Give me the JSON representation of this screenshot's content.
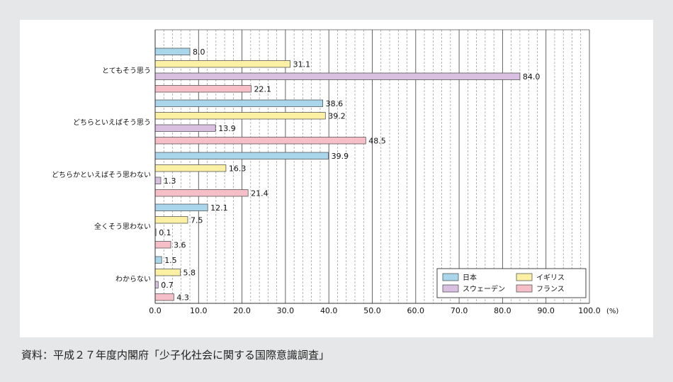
{
  "chart_data": {
    "type": "bar",
    "orientation": "horizontal",
    "categories": [
      "とてもそう思う",
      "どちらといえばそう思う",
      "どちらかといえばそう思わない",
      "全くそう思わない",
      "わからない"
    ],
    "series": [
      {
        "name": "日本",
        "values": [
          8.0,
          38.6,
          39.9,
          12.1,
          1.5
        ],
        "color": "#a9d6ea"
      },
      {
        "name": "イギリス",
        "values": [
          31.1,
          39.2,
          16.3,
          7.5,
          5.8
        ],
        "color": "#fbf0a4"
      },
      {
        "name": "スウェーデン",
        "values": [
          84.0,
          13.9,
          1.3,
          0.1,
          0.7
        ],
        "color": "#d9bfe0"
      },
      {
        "name": "フランス",
        "values": [
          22.1,
          48.5,
          21.4,
          3.6,
          4.3
        ],
        "color": "#f6bfc8"
      }
    ],
    "value_labels": [
      [
        "8.0",
        "38.6",
        "39.9",
        "12.1",
        "1.5"
      ],
      [
        "31.1",
        "39.2",
        "16.3",
        "7.5",
        "5.8"
      ],
      [
        "84.0",
        "13.9",
        "1.3",
        "0.1",
        "0.7"
      ],
      [
        "22.1",
        "48.5",
        "21.4",
        "3.6",
        "4.3"
      ]
    ],
    "xlim": [
      0,
      100
    ],
    "ticks": [
      "0.0",
      "10.0",
      "20.0",
      "30.0",
      "40.0",
      "50.0",
      "60.0",
      "70.0",
      "80.0",
      "90.0",
      "100.0"
    ],
    "unit": "(%)",
    "grid": "vertical-dashed",
    "legend_position": "bottom-right"
  },
  "source_text": "資料：平成２７年度内閣府「少子化社会に関する国際意識調査」"
}
